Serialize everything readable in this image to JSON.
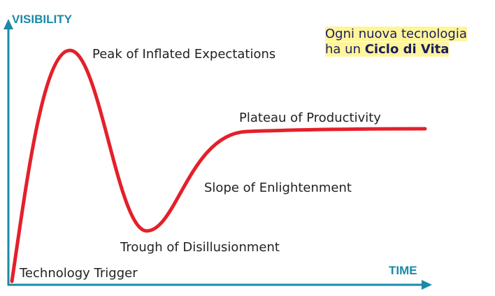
{
  "axes": {
    "y_label": "VISIBILITY",
    "x_label": "TIME"
  },
  "phases": [
    "Technology Trigger",
    "Peak of Inflated Expectations",
    "Trough of Disillusionment",
    "Slope of Enlightenment",
    "Plateau of Productivity"
  ],
  "callout": {
    "line1": "Ogni nuova tecnologia",
    "line2_prefix": "ha un",
    "line2_bold": "Ciclo di Vita"
  }
}
